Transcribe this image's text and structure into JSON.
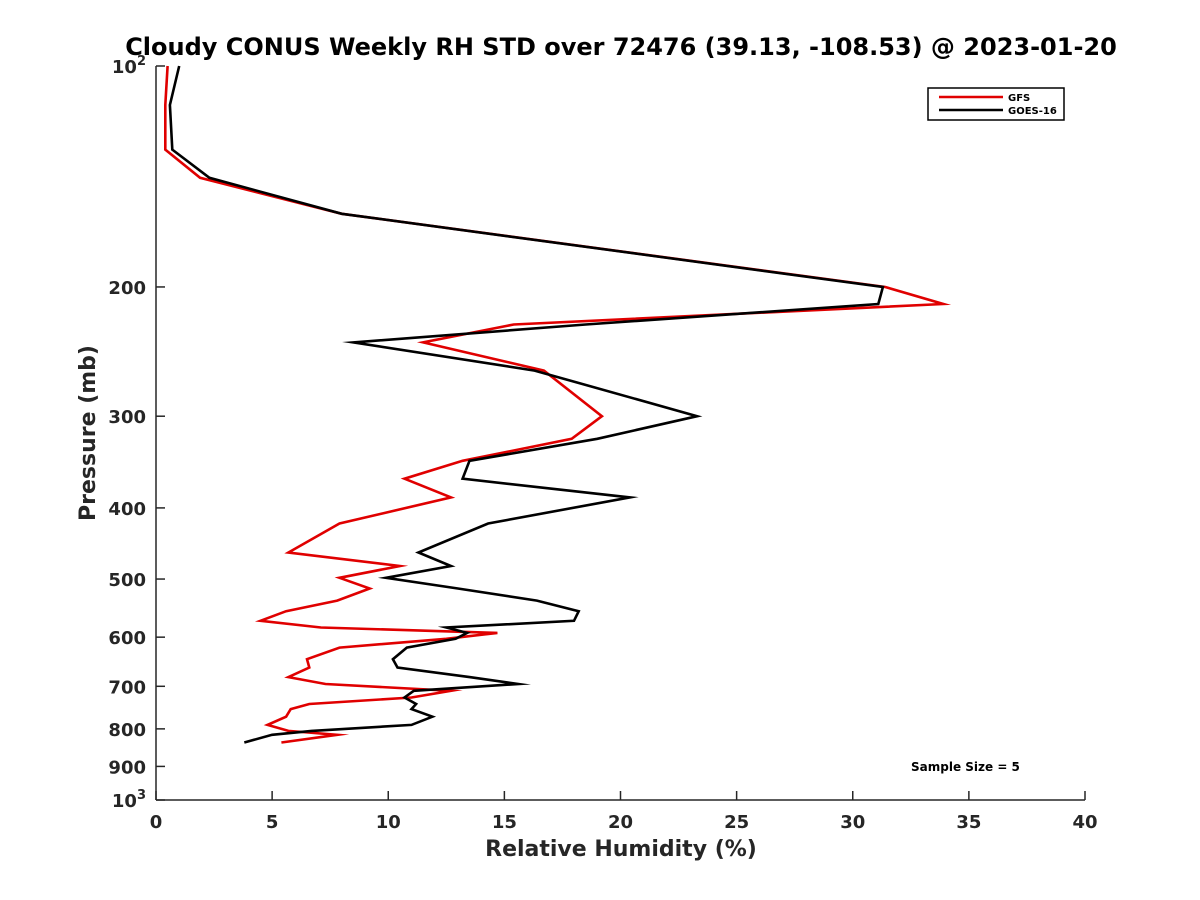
{
  "chart_data": {
    "type": "line",
    "title": "Cloudy CONUS Weekly RH STD over 72476 (39.13, -108.53) @ 2023-01-20",
    "xlabel": "Relative Humidity (%)",
    "ylabel": "Pressure (mb)",
    "xlim": [
      0,
      40
    ],
    "ylim": [
      100,
      1000
    ],
    "y_scale": "log",
    "y_reversed": true,
    "grid": false,
    "legend_position": "top-right",
    "x_ticks": [
      "0",
      "5",
      "10",
      "15",
      "20",
      "25",
      "30",
      "35",
      "40"
    ],
    "y_ticks": [
      {
        "value": 100,
        "base": "10",
        "exp": "2"
      },
      {
        "value": 200,
        "label": "200"
      },
      {
        "value": 300,
        "label": "300"
      },
      {
        "value": 400,
        "label": "400"
      },
      {
        "value": 500,
        "label": "500"
      },
      {
        "value": 600,
        "label": "600"
      },
      {
        "value": 700,
        "label": "700"
      },
      {
        "value": 800,
        "label": "800"
      },
      {
        "value": 900,
        "label": "900"
      },
      {
        "value": 1000,
        "base": "10",
        "exp": "3"
      }
    ],
    "series": [
      {
        "name": "GFS",
        "color": "#e00000",
        "points": [
          [
            0.5,
            100
          ],
          [
            0.4,
            113
          ],
          [
            0.4,
            130
          ],
          [
            1.9,
            142
          ],
          [
            8.0,
            159
          ],
          [
            31.4,
            200
          ],
          [
            33.9,
            211
          ],
          [
            15.4,
            225
          ],
          [
            11.5,
            238
          ],
          [
            16.7,
            260
          ],
          [
            19.2,
            300
          ],
          [
            17.9,
            322
          ],
          [
            13.2,
            345
          ],
          [
            10.7,
            365
          ],
          [
            12.7,
            387
          ],
          [
            7.9,
            420
          ],
          [
            5.7,
            460
          ],
          [
            10.5,
            480
          ],
          [
            7.9,
            498
          ],
          [
            9.2,
            515
          ],
          [
            7.8,
            535
          ],
          [
            5.6,
            553
          ],
          [
            4.5,
            570
          ],
          [
            7.1,
            582
          ],
          [
            14.7,
            592
          ],
          [
            12.5,
            603
          ],
          [
            7.9,
            620
          ],
          [
            6.5,
            643
          ],
          [
            6.6,
            660
          ],
          [
            5.7,
            680
          ],
          [
            7.3,
            695
          ],
          [
            12.7,
            710
          ],
          [
            11.0,
            725
          ],
          [
            6.6,
            740
          ],
          [
            5.8,
            752
          ],
          [
            5.6,
            770
          ],
          [
            4.8,
            790
          ],
          [
            5.7,
            805
          ],
          [
            7.8,
            815
          ],
          [
            5.4,
            835
          ]
        ]
      },
      {
        "name": "GOES-16",
        "color": "#000000",
        "points": [
          [
            1.0,
            100
          ],
          [
            0.6,
            113
          ],
          [
            0.7,
            130
          ],
          [
            2.3,
            142
          ],
          [
            8.0,
            159
          ],
          [
            31.3,
            200
          ],
          [
            31.1,
            211
          ],
          [
            18.5,
            225
          ],
          [
            8.5,
            238
          ],
          [
            16.3,
            260
          ],
          [
            23.3,
            300
          ],
          [
            19.0,
            322
          ],
          [
            13.5,
            345
          ],
          [
            13.2,
            365
          ],
          [
            20.4,
            387
          ],
          [
            14.3,
            420
          ],
          [
            11.3,
            460
          ],
          [
            12.7,
            480
          ],
          [
            9.9,
            498
          ],
          [
            13.0,
            515
          ],
          [
            16.4,
            535
          ],
          [
            18.2,
            553
          ],
          [
            18.0,
            570
          ],
          [
            12.5,
            582
          ],
          [
            13.4,
            592
          ],
          [
            12.9,
            603
          ],
          [
            10.8,
            620
          ],
          [
            10.2,
            643
          ],
          [
            10.4,
            660
          ],
          [
            13.5,
            680
          ],
          [
            15.6,
            695
          ],
          [
            11.1,
            710
          ],
          [
            10.7,
            725
          ],
          [
            11.2,
            740
          ],
          [
            11.0,
            752
          ],
          [
            11.9,
            770
          ],
          [
            11.0,
            790
          ],
          [
            6.7,
            805
          ],
          [
            5.0,
            815
          ],
          [
            3.8,
            835
          ]
        ]
      }
    ],
    "annotations": [
      {
        "text": "Sample Size = 5"
      }
    ]
  }
}
